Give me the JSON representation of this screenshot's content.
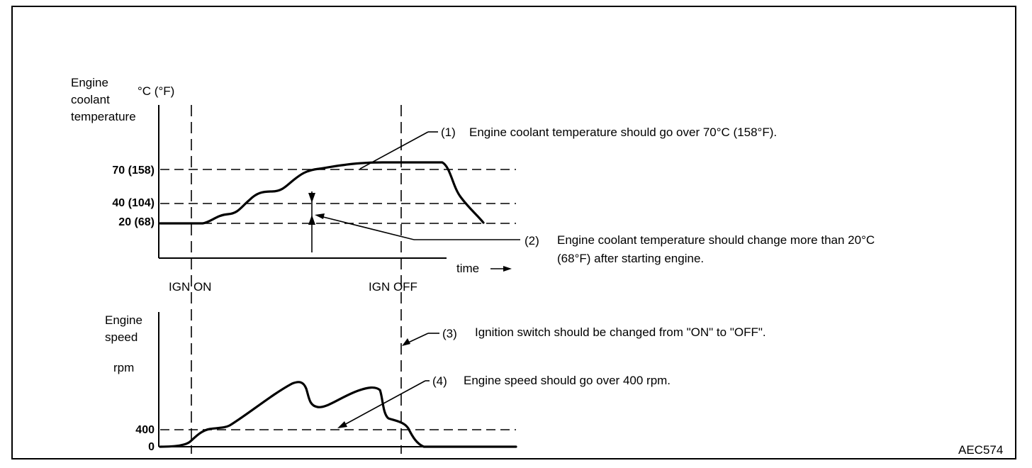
{
  "top_chart": {
    "ylabel_lines": [
      "Engine",
      "coolant",
      "temperature"
    ],
    "unit": "°C (°F)",
    "levels": [
      "70 (158)",
      "40 (104)",
      "20 (68)"
    ],
    "time_label": "time"
  },
  "bottom_chart": {
    "ylabel_lines": [
      "Engine",
      "speed"
    ],
    "unit": "rpm",
    "levels": [
      "400",
      "0"
    ]
  },
  "markers": {
    "ign_on": "IGN ON",
    "ign_off": "IGN OFF"
  },
  "notes": [
    {
      "num": "(1)",
      "lines": [
        "Engine coolant temperature should go over 70°C (158°F)."
      ]
    },
    {
      "num": "(2)",
      "lines": [
        "Engine coolant temperature should change more than 20°C",
        "(68°F) after starting engine."
      ]
    },
    {
      "num": "(3)",
      "lines": [
        "Ignition switch should be changed from \"ON\" to \"OFF\"."
      ]
    },
    {
      "num": "(4)",
      "lines": [
        "Engine speed should go over 400 rpm."
      ]
    }
  ],
  "figure_code": "AEC574",
  "chart_data": [
    {
      "type": "line",
      "title": "",
      "ylabel": "Engine coolant temperature °C (°F)",
      "xlabel": "time",
      "ytick_labels": [
        "70 (158)",
        "40 (104)",
        "20 (68)"
      ],
      "series": [
        {
          "x": [
            0.0,
            0.12,
            0.2,
            0.3,
            0.33,
            0.42,
            0.46,
            0.55,
            0.63,
            0.72,
            0.8,
            0.82,
            0.85,
            0.9
          ],
          "y": [
            20,
            20,
            23,
            38,
            40,
            58,
            70,
            73,
            75,
            76,
            76,
            70,
            45,
            20
          ]
        }
      ],
      "markers": [
        "IGN ON",
        "IGN OFF"
      ]
    },
    {
      "type": "line",
      "title": "",
      "ylabel": "Engine speed rpm",
      "ytick_labels": [
        "400",
        "0"
      ],
      "series": [
        {
          "x": [
            0.0,
            0.08,
            0.12,
            0.15,
            0.2,
            0.28,
            0.38,
            0.42,
            0.45,
            0.5,
            0.58,
            0.62,
            0.68,
            0.7,
            0.75,
            0.8,
            1.0
          ],
          "y": [
            0,
            40,
            300,
            410,
            430,
            800,
            1550,
            1650,
            1180,
            1250,
            1450,
            1450,
            780,
            720,
            100,
            0,
            0
          ]
        }
      ],
      "markers": [
        "IGN ON",
        "IGN OFF"
      ]
    }
  ]
}
